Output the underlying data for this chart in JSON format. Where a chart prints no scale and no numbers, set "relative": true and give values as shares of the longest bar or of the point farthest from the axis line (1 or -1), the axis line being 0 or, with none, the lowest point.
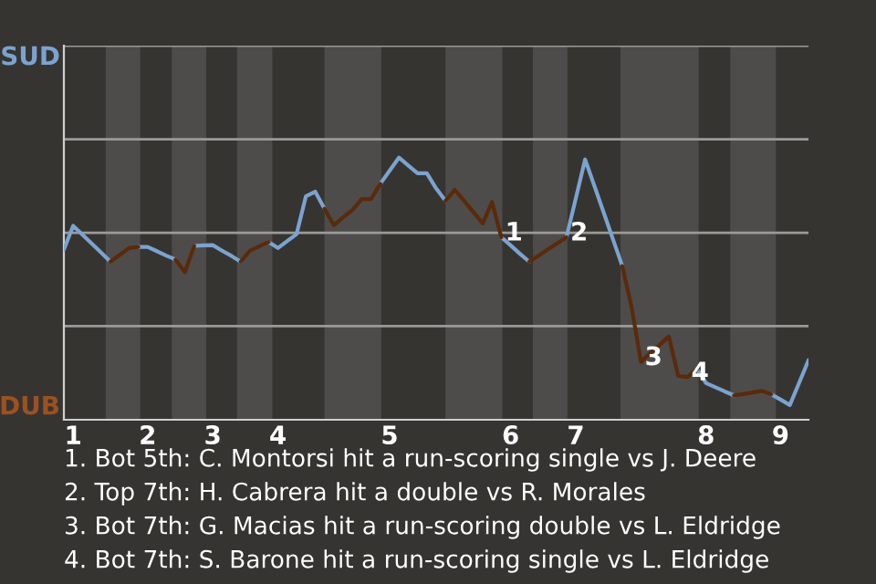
{
  "chart_data": {
    "type": "line",
    "relative": true,
    "categories": [
      null,
      "1",
      null,
      null,
      null,
      null,
      null,
      null,
      null,
      "2",
      null,
      null,
      null,
      null,
      null,
      null,
      "3",
      null,
      null,
      null,
      null,
      null,
      null,
      "4",
      null,
      null,
      null,
      null,
      null,
      null,
      null,
      null,
      null,
      null,
      null,
      "5",
      null,
      null,
      null,
      null,
      null,
      null,
      null,
      null,
      null,
      null,
      null,
      null,
      "6",
      null,
      null,
      null,
      null,
      null,
      null,
      "7",
      null,
      null,
      null,
      null,
      null,
      null,
      null,
      null,
      null,
      null,
      null,
      null,
      null,
      "8",
      null,
      null,
      null,
      null,
      null,
      null,
      null,
      "9",
      null,
      null,
      null
    ],
    "series": [
      {
        "color": "#7ba3cf",
        "values": [
          0.649,
          0.74,
          0.706,
          0.672,
          0.638,
          0.603,
          null,
          null,
          0.659,
          0.659,
          0.643,
          0.626,
          0.611,
          null,
          0.663,
          0.665,
          0.666,
          0.645,
          0.625,
          0.603,
          null,
          null,
          0.678,
          0.655,
          0.682,
          0.708,
          0.852,
          0.87,
          0.805,
          null,
          null,
          null,
          null,
          null,
          0.9,
          0.95,
          1,
          0.97,
          0.94,
          0.94,
          0.882,
          0.835,
          null,
          null,
          null,
          null,
          null,
          0.696,
          0.665,
          0.633,
          0.603,
          null,
          null,
          null,
          0.696,
          0.844,
          0.993,
          0.892,
          0.79,
          0.688,
          0.586,
          null,
          null,
          null,
          null,
          null,
          null,
          null,
          0.193,
          0.14,
          0.124,
          0.108,
          0.093,
          null,
          null,
          null,
          0.097,
          0.077,
          0.056,
          0.141,
          0.227
        ]
      },
      {
        "color": "#5a2a0a",
        "values": [
          null,
          null,
          null,
          null,
          null,
          0.603,
          0.629,
          0.655,
          0.659,
          null,
          null,
          null,
          0.611,
          0.563,
          0.663,
          null,
          null,
          null,
          null,
          0.603,
          0.645,
          0.662,
          0.678,
          null,
          null,
          null,
          null,
          null,
          0.805,
          0.742,
          0.772,
          0.8,
          0.842,
          0.842,
          0.9,
          null,
          null,
          null,
          null,
          null,
          null,
          null,
          null,
          null,
          null,
          null,
          null,
          null,
          null,
          null,
          null,
          null,
          null,
          null,
          null,
          null,
          null,
          null,
          null,
          null,
          null,
          null,
          null,
          null,
          null,
          null,
          null,
          0.163,
          0.193,
          null,
          null,
          null,
          0.093,
          0.098,
          0.104,
          0.11,
          0.097,
          null,
          null,
          null,
          null
        ]
      },
      {
        "name": "1",
        "color": "#5a2a0a",
        "values": [
          null,
          null,
          null,
          null,
          null,
          null,
          null,
          null,
          null,
          null,
          null,
          null,
          null,
          null,
          null,
          null,
          null,
          null,
          null,
          null,
          null,
          null,
          null,
          null,
          null,
          null,
          null,
          null,
          null,
          null,
          null,
          null,
          null,
          null,
          null,
          null,
          null,
          null,
          null,
          null,
          null,
          0.835,
          0.877,
          0.835,
          0.792,
          0.749,
          0.83,
          0.696,
          null,
          null,
          null,
          null,
          null,
          null,
          null,
          null,
          null,
          null,
          null,
          null,
          null,
          null,
          null,
          null,
          null,
          null,
          null,
          null,
          null,
          null,
          null,
          null,
          null,
          null,
          null,
          null,
          null,
          null,
          null,
          null,
          null
        ]
      },
      {
        "name": "2",
        "color": "#5a2a0a",
        "values": [
          null,
          null,
          null,
          null,
          null,
          null,
          null,
          null,
          null,
          null,
          null,
          null,
          null,
          null,
          null,
          null,
          null,
          null,
          null,
          null,
          null,
          null,
          null,
          null,
          null,
          null,
          null,
          null,
          null,
          null,
          null,
          null,
          null,
          null,
          null,
          null,
          null,
          null,
          null,
          null,
          null,
          null,
          null,
          null,
          null,
          null,
          null,
          null,
          null,
          null,
          0.603,
          0.626,
          0.65,
          0.673,
          0.696,
          null,
          null,
          null,
          null,
          null,
          null,
          null,
          null,
          null,
          null,
          null,
          null,
          null,
          null,
          null,
          null,
          null,
          null,
          null,
          null,
          null,
          null,
          null,
          null,
          null,
          null
        ]
      },
      {
        "name": "3",
        "color": "#5a2a0a",
        "values": [
          null,
          null,
          null,
          null,
          null,
          null,
          null,
          null,
          null,
          null,
          null,
          null,
          null,
          null,
          null,
          null,
          null,
          null,
          null,
          null,
          null,
          null,
          null,
          null,
          null,
          null,
          null,
          null,
          null,
          null,
          null,
          null,
          null,
          null,
          null,
          null,
          null,
          null,
          null,
          null,
          null,
          null,
          null,
          null,
          null,
          null,
          null,
          null,
          null,
          null,
          null,
          null,
          null,
          null,
          null,
          null,
          null,
          null,
          null,
          null,
          0.586,
          0.429,
          0.221,
          null,
          null,
          null,
          null,
          null,
          null,
          null,
          null,
          null,
          null,
          null,
          null,
          null,
          null,
          null,
          null,
          null,
          null
        ]
      },
      {
        "name": "4",
        "color": "#5a2a0a",
        "values": [
          null,
          null,
          null,
          null,
          null,
          null,
          null,
          null,
          null,
          null,
          null,
          null,
          null,
          null,
          null,
          null,
          null,
          null,
          null,
          null,
          null,
          null,
          null,
          null,
          null,
          null,
          null,
          null,
          null,
          null,
          null,
          null,
          null,
          null,
          null,
          null,
          null,
          null,
          null,
          null,
          null,
          null,
          null,
          null,
          null,
          null,
          null,
          null,
          null,
          null,
          null,
          null,
          null,
          null,
          null,
          null,
          null,
          null,
          null,
          null,
          null,
          null,
          0.221,
          0.254,
          0.285,
          0.318,
          0.167,
          0.163,
          null,
          null,
          null,
          null,
          null,
          null,
          null,
          null,
          null,
          null,
          null,
          null,
          null
        ]
      }
    ],
    "ref_lines": [
      {
        "axis": "y",
        "value": 0.357,
        "color": "#9a9a98"
      },
      {
        "axis": "y",
        "value": 0.713,
        "color": "#9a9a98"
      },
      {
        "axis": "y",
        "value": 1.07,
        "color": "#9a9a98"
      },
      {
        "axis": "y",
        "value": 1.427,
        "color": "#9a9a98"
      }
    ],
    "annotations": [
      "SUD",
      "DUB",
      "1. Bot 5th: C. Montorsi hit a run-scoring single vs J. Deere",
      "2. Top 7th: H. Cabrera hit a double vs R. Morales",
      "3. Bot 7th: G. Macias hit a run-scoring double vs L. Eldridge",
      "4. Bot 7th: S. Barone hit a run-scoring single vs L. Eldridge"
    ]
  }
}
